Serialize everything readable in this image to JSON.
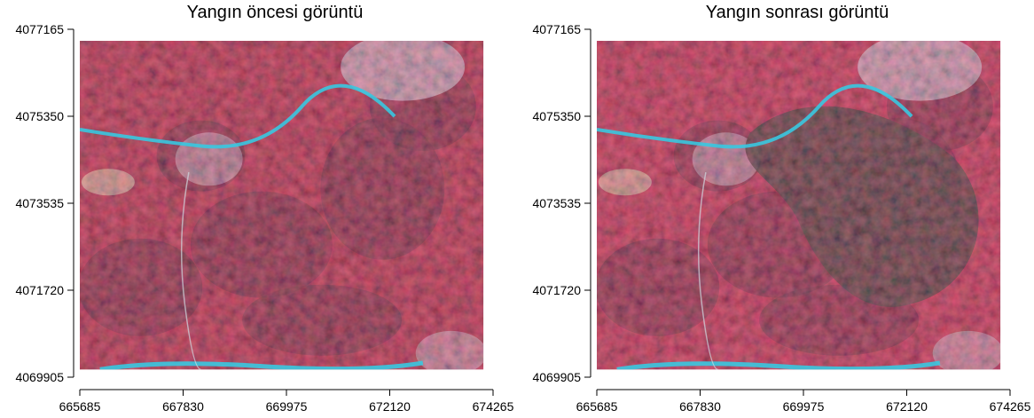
{
  "chart_data": [
    {
      "type": "heatmap",
      "title": "Yangın öncesi görüntü",
      "xlabel": "",
      "ylabel": "",
      "x_ticks": [
        "665685",
        "667830",
        "669975",
        "672120",
        "674265"
      ],
      "y_ticks": [
        "4069905",
        "4071720",
        "4073535",
        "4075350",
        "4077165"
      ],
      "xlim": [
        665685,
        674265
      ],
      "ylim": [
        4069905,
        4077165
      ],
      "image_extent_x": [
        665685,
        674065
      ],
      "image_extent_y": [
        4070065,
        4076925
      ],
      "palette": {
        "vegetation": "#a11a2e",
        "dark_veg": "#3a1220",
        "burn": "#1e2a1a",
        "water": "#38c8e0",
        "urban": "#c8d6dc",
        "field": "#d2c89a"
      }
    },
    {
      "type": "heatmap",
      "title": "Yangın sonrası görüntü",
      "xlabel": "",
      "ylabel": "",
      "x_ticks": [
        "665685",
        "667830",
        "669975",
        "672120",
        "674265"
      ],
      "y_ticks": [
        "4069905",
        "4071720",
        "4073535",
        "4075350",
        "4077165"
      ],
      "xlim": [
        665685,
        674265
      ],
      "ylim": [
        4069905,
        4077165
      ],
      "image_extent_x": [
        665685,
        674065
      ],
      "image_extent_y": [
        4070065,
        4076925
      ],
      "palette": {
        "vegetation": "#b01e38",
        "dark_veg": "#3a1220",
        "burn": "#1e2a1a",
        "water": "#38c8e0",
        "urban": "#c8d6dc",
        "field": "#d2c89a"
      }
    }
  ]
}
